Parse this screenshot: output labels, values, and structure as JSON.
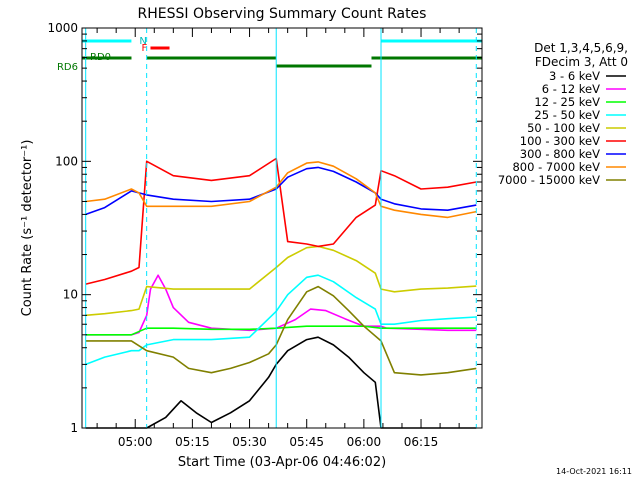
{
  "chart_data": {
    "type": "line",
    "title": "RHESSI Observing Summary Count Rates",
    "xlabel": "Start Time (03-Apr-06 04:46:02)",
    "ylabel": "Count Rate (s⁻¹ detector⁻¹)",
    "y_scale": "log",
    "ylim": [
      1,
      1000
    ],
    "y_ticks": [
      "1",
      "10",
      "100",
      "1000"
    ],
    "xlim": [
      "04:46:02",
      "06:31:00"
    ],
    "x_ticks": [
      "05:00",
      "05:15",
      "05:30",
      "05:45",
      "06:00",
      "06:15"
    ],
    "grid": false,
    "legend_position": "right",
    "legend_header": [
      "Det 1,3,4,5,6,9,",
      "FDecim 3, Att 0"
    ],
    "footer_date": "14-Oct-2021 16:11",
    "flag_labels": {
      "n": "N",
      "f": "F",
      "rd0": "RD0",
      "rd6": "RD6"
    },
    "flags": {
      "night": [
        [
          "04:46:02",
          "04:59:00"
        ],
        [
          "06:04:30",
          "06:31:00"
        ]
      ],
      "flare": [
        [
          "05:04:00",
          "05:09:00"
        ]
      ],
      "rd0": [
        [
          "04:46:02",
          "04:59:00"
        ]
      ],
      "rd6": [
        [
          "04:46:02",
          "04:59:00"
        ],
        [
          "05:03:00",
          "05:37:00"
        ],
        [
          "05:37:00",
          "06:02:00"
        ],
        [
          "06:02:00",
          "06:31:00"
        ]
      ]
    },
    "gaps": [
      "04:47:00",
      "05:03:00",
      "05:37:00",
      "06:04:30",
      "06:29:30"
    ],
    "series": [
      {
        "name": "3 - 6 keV",
        "color": "#000000",
        "x": [
          "04:47",
          "05:03",
          "05:08",
          "05:12",
          "05:16",
          "05:20",
          "05:25",
          "05:30",
          "05:35",
          "05:37",
          "05:40",
          "05:45",
          "05:48",
          "05:52",
          "05:56",
          "06:00",
          "06:03",
          "06:04:30",
          "06:08",
          "06:15",
          "06:22",
          "06:29:30"
        ],
        "y": [
          1.0,
          1.0,
          1.2,
          1.6,
          1.3,
          1.1,
          1.3,
          1.6,
          2.4,
          3.0,
          3.8,
          4.6,
          4.8,
          4.2,
          3.4,
          2.6,
          2.2,
          1.0,
          1.0,
          1.0,
          1.0,
          1.0
        ]
      },
      {
        "name": "6 - 12 keV",
        "color": "#ff00ff",
        "x": [
          "04:47",
          "04:59",
          "05:01",
          "05:03",
          "05:04",
          "05:06",
          "05:08",
          "05:10",
          "05:14",
          "05:20",
          "05:30",
          "05:37",
          "05:42",
          "05:46",
          "05:50",
          "05:55",
          "06:00",
          "06:04:30",
          "06:06",
          "06:15",
          "06:22",
          "06:29:30"
        ],
        "y": [
          5.0,
          5.0,
          5.2,
          7.0,
          11.0,
          14.0,
          11.0,
          8.0,
          6.2,
          5.6,
          5.4,
          5.6,
          6.5,
          7.8,
          7.6,
          6.6,
          5.8,
          5.8,
          5.6,
          5.5,
          5.4,
          5.4
        ]
      },
      {
        "name": "12 - 25 keV",
        "color": "#00ff00",
        "x": [
          "04:47",
          "04:59",
          "05:03",
          "05:10",
          "05:20",
          "05:30",
          "05:37",
          "05:45",
          "05:52",
          "06:00",
          "06:04:30",
          "06:08",
          "06:15",
          "06:22",
          "06:29:30"
        ],
        "y": [
          5.0,
          5.0,
          5.6,
          5.6,
          5.5,
          5.5,
          5.6,
          5.8,
          5.8,
          5.8,
          5.6,
          5.6,
          5.6,
          5.6,
          5.6
        ]
      },
      {
        "name": "25 - 50 keV",
        "color": "#00ffff",
        "x": [
          "04:47",
          "04:52",
          "04:59",
          "05:01",
          "05:03",
          "05:10",
          "05:20",
          "05:30",
          "05:37",
          "05:40",
          "05:45",
          "05:48",
          "05:52",
          "05:58",
          "06:03",
          "06:04:30",
          "06:08",
          "06:15",
          "06:22",
          "06:29:30"
        ],
        "y": [
          3.0,
          3.4,
          3.8,
          3.8,
          4.2,
          4.6,
          4.6,
          4.8,
          7.5,
          10.0,
          13.5,
          14.0,
          12.5,
          9.5,
          7.8,
          6.0,
          6.0,
          6.4,
          6.6,
          6.8
        ]
      },
      {
        "name": "50 - 100 keV",
        "color": "#cccc00",
        "x": [
          "04:47",
          "04:52",
          "04:59",
          "05:01",
          "05:03",
          "05:10",
          "05:20",
          "05:30",
          "05:37",
          "05:40",
          "05:45",
          "05:48",
          "05:52",
          "05:58",
          "06:03",
          "06:04:30",
          "06:08",
          "06:15",
          "06:22",
          "06:29:30"
        ],
        "y": [
          7.0,
          7.2,
          7.6,
          7.8,
          11.5,
          11.0,
          11.0,
          11.0,
          16.0,
          19.0,
          22.5,
          23.0,
          21.5,
          18.0,
          14.5,
          11.0,
          10.5,
          11.0,
          11.2,
          11.6
        ]
      },
      {
        "name": "100 - 300 keV",
        "color": "#ff0000",
        "x": [
          "04:47",
          "04:52",
          "04:59",
          "05:01",
          "05:03",
          "05:10",
          "05:20",
          "05:30",
          "05:37",
          "05:40",
          "05:45",
          "05:48",
          "05:52",
          "05:58",
          "06:03",
          "06:04:30",
          "06:08",
          "06:15",
          "06:22",
          "06:29:30"
        ],
        "y": [
          12.0,
          13.0,
          15.0,
          16.0,
          100.0,
          78.0,
          72.0,
          78.0,
          105.0,
          25.0,
          24.0,
          23.0,
          24.0,
          38.0,
          47.0,
          85.0,
          78.0,
          62.0,
          64.0,
          70.0
        ]
      },
      {
        "name": "300 - 800 keV",
        "color": "#0000ff",
        "x": [
          "04:47",
          "04:52",
          "04:59",
          "05:01",
          "05:03",
          "05:10",
          "05:20",
          "05:30",
          "05:37",
          "05:40",
          "05:45",
          "05:48",
          "05:52",
          "05:58",
          "06:03",
          "06:04:30",
          "06:08",
          "06:15",
          "06:22",
          "06:29:30"
        ],
        "y": [
          40.0,
          45.0,
          60.0,
          58.0,
          56.0,
          52.0,
          50.0,
          52.0,
          62.0,
          76.0,
          88.0,
          90.0,
          84.0,
          70.0,
          58.0,
          52.0,
          48.0,
          44.0,
          43.0,
          47.0
        ]
      },
      {
        "name": "800 - 7000 keV",
        "color": "#ff8800",
        "x": [
          "04:47",
          "04:52",
          "04:59",
          "05:01",
          "05:03",
          "05:10",
          "05:20",
          "05:30",
          "05:37",
          "05:40",
          "05:45",
          "05:48",
          "05:52",
          "05:58",
          "06:03",
          "06:04:30",
          "06:08",
          "06:15",
          "06:22",
          "06:29:30"
        ],
        "y": [
          50.0,
          52.0,
          62.0,
          58.0,
          46.0,
          46.0,
          46.0,
          50.0,
          64.0,
          82.0,
          97.0,
          99.0,
          92.0,
          74.0,
          58.0,
          46.0,
          43.0,
          40.0,
          38.0,
          42.0
        ]
      },
      {
        "name": "7000 - 15000 keV",
        "color": "#808000",
        "x": [
          "04:47",
          "04:59",
          "05:03",
          "05:10",
          "05:14",
          "05:20",
          "05:25",
          "05:30",
          "05:35",
          "05:37",
          "05:40",
          "05:45",
          "05:48",
          "05:52",
          "05:56",
          "06:00",
          "06:04:30",
          "06:08",
          "06:15",
          "06:22",
          "06:29:30"
        ],
        "y": [
          4.5,
          4.5,
          3.8,
          3.4,
          2.8,
          2.6,
          2.8,
          3.1,
          3.6,
          4.2,
          6.5,
          10.5,
          11.5,
          9.8,
          7.6,
          5.8,
          4.5,
          2.6,
          2.5,
          2.6,
          2.8
        ]
      }
    ]
  }
}
